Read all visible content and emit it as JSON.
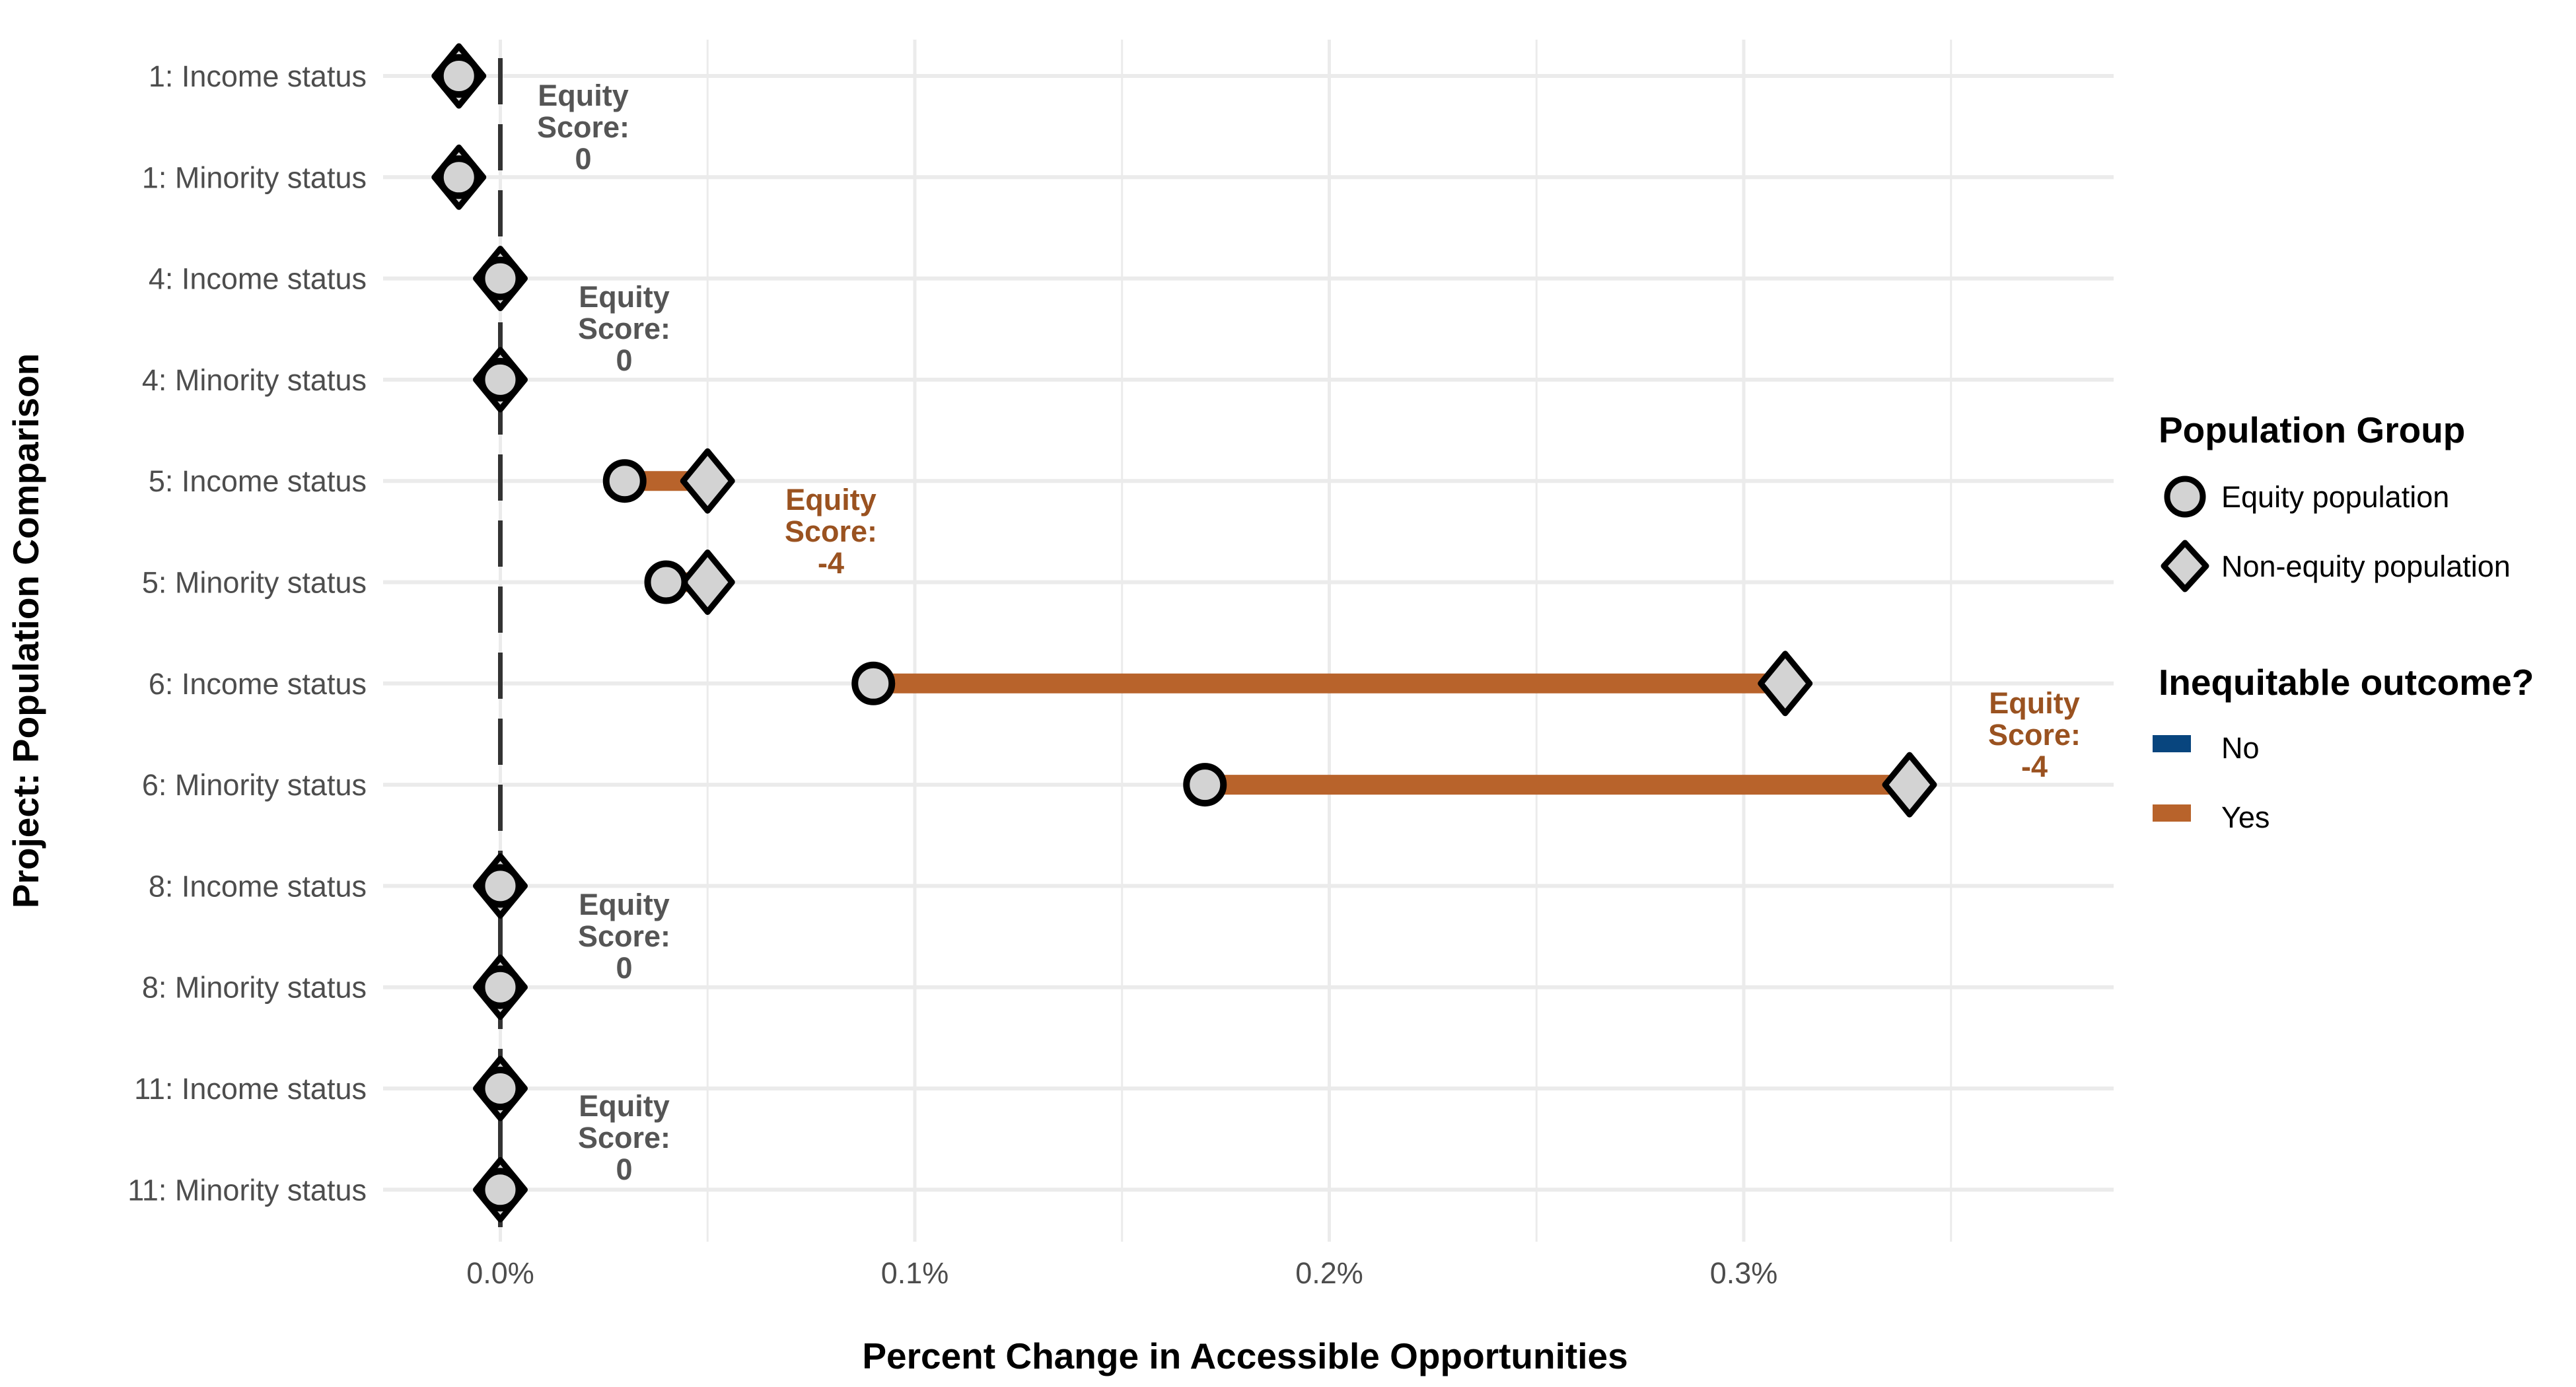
{
  "chart_data": {
    "type": "dumbbell",
    "title": "",
    "xlabel": "Percent Change in Accessible Opportunities",
    "ylabel": "Project: Population Comparison",
    "xlim": [
      -0.0003,
      0.0039
    ],
    "x_ticks": [
      0.0,
      0.001,
      0.002,
      0.003
    ],
    "x_tick_labels": [
      "0.0%",
      "0.1%",
      "0.2%",
      "0.3%"
    ],
    "reference_line": {
      "x": 0.0,
      "style": "dashed"
    },
    "grid": true,
    "categories": [
      "1: Income status",
      "1: Minority status",
      "4: Income status",
      "4: Minority status",
      "5: Income status",
      "5: Minority status",
      "6: Income status",
      "6: Minority status",
      "8: Income status",
      "8: Minority status",
      "11: Income status",
      "11: Minority status"
    ],
    "series": [
      {
        "name": "Equity population",
        "shape": "circle",
        "values": [
          -0.0001,
          -0.0001,
          0.0,
          0.0,
          0.0003,
          0.0004,
          0.0009,
          0.0017,
          0.0,
          0.0,
          0.0,
          0.0
        ]
      },
      {
        "name": "Non-equity population",
        "shape": "diamond",
        "values": [
          -0.0001,
          -0.0001,
          0.0,
          0.0,
          0.0005,
          0.0005,
          0.0031,
          0.0034,
          0.0,
          0.0,
          0.0,
          0.0
        ]
      }
    ],
    "inequitable": [
      "No",
      "No",
      "No",
      "No",
      "Yes",
      "Yes",
      "Yes",
      "Yes",
      "No",
      "No",
      "No",
      "No"
    ],
    "annotations": [
      {
        "project": "1",
        "lines": [
          "Equity",
          "Score:",
          "0"
        ],
        "color": "#555555"
      },
      {
        "project": "4",
        "lines": [
          "Equity",
          "Score:",
          "0"
        ],
        "color": "#555555"
      },
      {
        "project": "5",
        "lines": [
          "Equity",
          "Score:",
          "-4"
        ],
        "color": "#9a5220"
      },
      {
        "project": "6",
        "lines": [
          "Equity",
          "Score:",
          "-4"
        ],
        "color": "#9a5220"
      },
      {
        "project": "8",
        "lines": [
          "Equity",
          "Score:",
          "0"
        ],
        "color": "#555555"
      },
      {
        "project": "11",
        "lines": [
          "Equity",
          "Score:",
          "0"
        ],
        "color": "#555555"
      }
    ],
    "legend": {
      "position": "right",
      "groups": [
        {
          "title": "Population Group",
          "items": [
            {
              "label": "Equity population",
              "shape": "circle"
            },
            {
              "label": "Non-equity population",
              "shape": "diamond"
            }
          ]
        },
        {
          "title": "Inequitable outcome?",
          "items": [
            {
              "label": "No",
              "color": "#08457e"
            },
            {
              "label": "Yes",
              "color": "#b8632b"
            }
          ]
        }
      ]
    },
    "colors": {
      "no": "#08457e",
      "yes": "#b8632b",
      "marker_fill": "#d3d3d3",
      "marker_stroke": "#000000",
      "grid": "#ebebeb"
    }
  }
}
